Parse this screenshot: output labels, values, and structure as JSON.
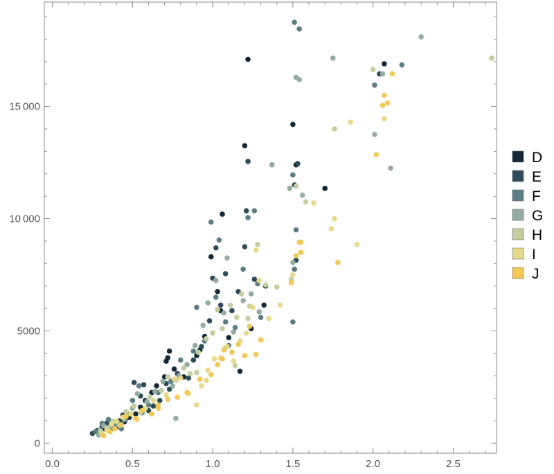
{
  "chart_data": {
    "type": "scatter",
    "title": "",
    "xlabel": "",
    "ylabel": "",
    "xlim": [
      -0.05,
      2.77
    ],
    "ylim": [
      -450,
      19650
    ],
    "x_ticks": [
      0.0,
      0.5,
      1.0,
      1.5,
      2.0,
      2.5
    ],
    "x_tick_labels": [
      "0.0",
      "0.5",
      "1.0",
      "1.5",
      "2.0",
      "2.5"
    ],
    "y_ticks": [
      0,
      5000,
      10000,
      15000
    ],
    "y_tick_labels": [
      "0",
      "5000",
      "10 000",
      "15 000"
    ],
    "grid": false,
    "legend_position": "right",
    "series": [
      {
        "name": "D",
        "color": "#142838",
        "points": [
          [
            0.3,
            470
          ],
          [
            0.33,
            620
          ],
          [
            0.36,
            560
          ],
          [
            0.4,
            720
          ],
          [
            0.45,
            950
          ],
          [
            0.48,
            1150
          ],
          [
            0.52,
            1300
          ],
          [
            0.55,
            1600
          ],
          [
            0.58,
            1900
          ],
          [
            0.62,
            2250
          ],
          [
            0.65,
            2550
          ],
          [
            0.7,
            2950
          ],
          [
            0.71,
            3650
          ],
          [
            0.72,
            3800
          ],
          [
            0.73,
            4100
          ],
          [
            0.76,
            3300
          ],
          [
            0.82,
            2950
          ],
          [
            0.9,
            3900
          ],
          [
            0.92,
            4150
          ],
          [
            0.95,
            4750
          ],
          [
            0.99,
            8300
          ],
          [
            1.03,
            6750
          ],
          [
            1.05,
            5900
          ],
          [
            1.06,
            10200
          ],
          [
            1.1,
            4700
          ],
          [
            1.17,
            3200
          ],
          [
            1.2,
            13250
          ],
          [
            1.22,
            17100
          ],
          [
            1.24,
            5100
          ],
          [
            1.32,
            6150
          ],
          [
            1.5,
            14200
          ],
          [
            1.52,
            12400
          ],
          [
            1.7,
            11350
          ],
          [
            2.07,
            16900
          ],
          [
            1.33,
            7000
          ]
        ]
      },
      {
        "name": "E",
        "color": "#2e4c58",
        "points": [
          [
            0.25,
            430
          ],
          [
            0.28,
            560
          ],
          [
            0.31,
            720
          ],
          [
            0.34,
            900
          ],
          [
            0.37,
            790
          ],
          [
            0.42,
            1000
          ],
          [
            0.44,
            1250
          ],
          [
            0.46,
            1100
          ],
          [
            0.51,
            2700
          ],
          [
            0.55,
            2100
          ],
          [
            0.57,
            2600
          ],
          [
            0.6,
            1450
          ],
          [
            0.63,
            1650
          ],
          [
            0.67,
            1900
          ],
          [
            0.71,
            2650
          ],
          [
            0.73,
            2400
          ],
          [
            0.78,
            3100
          ],
          [
            0.85,
            2900
          ],
          [
            0.88,
            3700
          ],
          [
            0.93,
            4300
          ],
          [
            0.98,
            5450
          ],
          [
            1.0,
            7350
          ],
          [
            1.02,
            8700
          ],
          [
            1.05,
            6150
          ],
          [
            1.08,
            7550
          ],
          [
            1.12,
            5900
          ],
          [
            1.16,
            6750
          ],
          [
            1.2,
            8750
          ],
          [
            1.21,
            10350
          ],
          [
            1.22,
            12550
          ],
          [
            1.26,
            7300
          ],
          [
            1.51,
            11500
          ],
          [
            1.52,
            8150
          ],
          [
            1.53,
            12450
          ],
          [
            2.04,
            16450
          ]
        ]
      },
      {
        "name": "F",
        "color": "#5a7e84",
        "points": [
          [
            0.27,
            520
          ],
          [
            0.31,
            880
          ],
          [
            0.35,
            1050
          ],
          [
            0.39,
            780
          ],
          [
            0.43,
            640
          ],
          [
            0.47,
            1300
          ],
          [
            0.5,
            1900
          ],
          [
            0.54,
            2550
          ],
          [
            0.56,
            1350
          ],
          [
            0.6,
            1700
          ],
          [
            0.66,
            2250
          ],
          [
            0.74,
            2750
          ],
          [
            0.8,
            3700
          ],
          [
            0.88,
            4100
          ],
          [
            0.9,
            6050
          ],
          [
            0.95,
            4550
          ],
          [
            0.99,
            9850
          ],
          [
            1.02,
            6500
          ],
          [
            1.04,
            9050
          ],
          [
            1.08,
            5400
          ],
          [
            1.1,
            4350
          ],
          [
            1.14,
            5150
          ],
          [
            1.19,
            7750
          ],
          [
            1.22,
            10050
          ],
          [
            1.26,
            10350
          ],
          [
            1.28,
            7100
          ],
          [
            1.3,
            5600
          ],
          [
            1.5,
            11950
          ],
          [
            1.51,
            18750
          ],
          [
            1.52,
            9500
          ],
          [
            1.54,
            18450
          ],
          [
            1.5,
            5400
          ],
          [
            1.51,
            7750
          ],
          [
            2.01,
            15950
          ],
          [
            2.18,
            16850
          ]
        ]
      },
      {
        "name": "G",
        "color": "#94aca0",
        "points": [
          [
            0.29,
            360
          ],
          [
            0.32,
            780
          ],
          [
            0.36,
            700
          ],
          [
            0.41,
            880
          ],
          [
            0.45,
            1050
          ],
          [
            0.5,
            1550
          ],
          [
            0.53,
            2200
          ],
          [
            0.59,
            1850
          ],
          [
            0.64,
            2300
          ],
          [
            0.69,
            2750
          ],
          [
            0.75,
            2550
          ],
          [
            0.79,
            3000
          ],
          [
            0.84,
            3500
          ],
          [
            0.89,
            4350
          ],
          [
            0.94,
            5250
          ],
          [
            0.97,
            6250
          ],
          [
            1.02,
            7250
          ],
          [
            1.07,
            5800
          ],
          [
            1.09,
            8250
          ],
          [
            1.13,
            4950
          ],
          [
            1.19,
            6350
          ],
          [
            1.24,
            6650
          ],
          [
            1.29,
            5850
          ],
          [
            1.37,
            12400
          ],
          [
            1.48,
            11350
          ],
          [
            1.52,
            16300
          ],
          [
            1.54,
            16200
          ],
          [
            1.56,
            11050
          ],
          [
            1.75,
            17150
          ],
          [
            2.01,
            13750
          ],
          [
            2.11,
            12250
          ],
          [
            2.06,
            16450
          ],
          [
            2.3,
            18100
          ],
          [
            1.5,
            8050
          ],
          [
            0.77,
            1100
          ]
        ]
      },
      {
        "name": "H",
        "color": "#c3cf9e",
        "points": [
          [
            0.3,
            540
          ],
          [
            0.34,
            680
          ],
          [
            0.38,
            960
          ],
          [
            0.42,
            780
          ],
          [
            0.46,
            1400
          ],
          [
            0.51,
            1650
          ],
          [
            0.55,
            1350
          ],
          [
            0.61,
            2050
          ],
          [
            0.68,
            2350
          ],
          [
            0.72,
            2950
          ],
          [
            0.77,
            2800
          ],
          [
            0.82,
            3350
          ],
          [
            0.86,
            3100
          ],
          [
            0.91,
            4050
          ],
          [
            0.96,
            4650
          ],
          [
            1.0,
            4900
          ],
          [
            1.03,
            5950
          ],
          [
            1.06,
            5100
          ],
          [
            1.11,
            6150
          ],
          [
            1.15,
            5600
          ],
          [
            1.18,
            6650
          ],
          [
            1.23,
            6100
          ],
          [
            1.28,
            8850
          ],
          [
            1.33,
            7050
          ],
          [
            1.4,
            6950
          ],
          [
            1.52,
            11450
          ],
          [
            1.49,
            7300
          ],
          [
            1.58,
            10750
          ],
          [
            1.76,
            14000
          ],
          [
            2.0,
            16650
          ],
          [
            2.74,
            17150
          ],
          [
            0.9,
            3150
          ],
          [
            1.08,
            4250
          ],
          [
            1.14,
            3450
          ],
          [
            1.22,
            5550
          ]
        ]
      },
      {
        "name": "I",
        "color": "#e6da8a",
        "points": [
          [
            0.31,
            400
          ],
          [
            0.34,
            560
          ],
          [
            0.37,
            840
          ],
          [
            0.4,
            980
          ],
          [
            0.44,
            1150
          ],
          [
            0.49,
            1300
          ],
          [
            0.53,
            1050
          ],
          [
            0.58,
            1550
          ],
          [
            0.63,
            1900
          ],
          [
            0.71,
            2150
          ],
          [
            0.76,
            2850
          ],
          [
            0.8,
            2900
          ],
          [
            0.85,
            2200
          ],
          [
            0.9,
            1700
          ],
          [
            0.93,
            2550
          ],
          [
            0.97,
            3250
          ],
          [
            1.01,
            3750
          ],
          [
            1.05,
            3800
          ],
          [
            1.09,
            4300
          ],
          [
            1.13,
            3650
          ],
          [
            1.17,
            4550
          ],
          [
            1.21,
            4900
          ],
          [
            1.25,
            6050
          ],
          [
            1.29,
            7250
          ],
          [
            1.35,
            5550
          ],
          [
            1.42,
            6150
          ],
          [
            1.5,
            7500
          ],
          [
            1.63,
            10700
          ],
          [
            1.74,
            9550
          ],
          [
            1.76,
            10000
          ],
          [
            1.86,
            14300
          ],
          [
            2.07,
            14450
          ],
          [
            1.9,
            8850
          ],
          [
            1.27,
            8600
          ],
          [
            0.96,
            2800
          ]
        ]
      },
      {
        "name": "J",
        "color": "#f3c856",
        "points": [
          [
            0.32,
            340
          ],
          [
            0.36,
            510
          ],
          [
            0.39,
            640
          ],
          [
            0.43,
            820
          ],
          [
            0.46,
            1200
          ],
          [
            0.52,
            1100
          ],
          [
            0.56,
            1450
          ],
          [
            0.62,
            1300
          ],
          [
            0.66,
            1700
          ],
          [
            0.72,
            1950
          ],
          [
            0.78,
            2050
          ],
          [
            0.84,
            2250
          ],
          [
            0.92,
            2850
          ],
          [
            0.99,
            3050
          ],
          [
            1.03,
            3500
          ],
          [
            1.07,
            4150
          ],
          [
            1.12,
            4050
          ],
          [
            1.16,
            4400
          ],
          [
            1.2,
            3900
          ],
          [
            1.23,
            5200
          ],
          [
            1.27,
            3950
          ],
          [
            1.3,
            4600
          ],
          [
            1.49,
            7150
          ],
          [
            1.52,
            8350
          ],
          [
            1.54,
            8950
          ],
          [
            1.55,
            8500
          ],
          [
            1.55,
            8950
          ],
          [
            1.78,
            8050
          ],
          [
            2.02,
            12850
          ],
          [
            2.06,
            15050
          ],
          [
            2.09,
            15150
          ],
          [
            2.07,
            15500
          ],
          [
            2.12,
            16450
          ],
          [
            1.06,
            3750
          ],
          [
            0.66,
            1550
          ]
        ]
      }
    ]
  }
}
